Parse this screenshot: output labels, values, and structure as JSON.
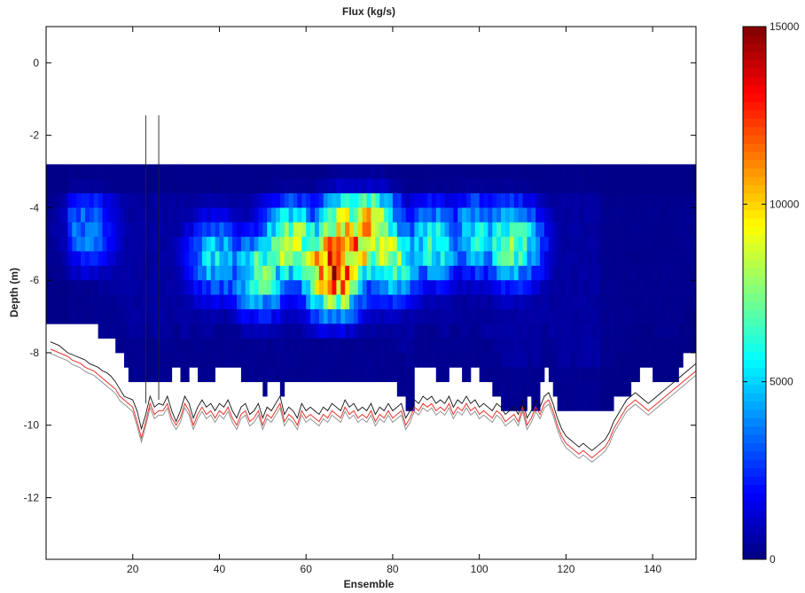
{
  "chart_data": {
    "type": "heatmap",
    "title": "Flux (kg/s)",
    "xlabel": "Ensemble",
    "ylabel": "Depth (m)",
    "xlim": [
      0,
      150
    ],
    "ylim": [
      -13.7,
      1
    ],
    "xticks": [
      20,
      40,
      60,
      80,
      100,
      120,
      140
    ],
    "yticks": [
      0,
      -2,
      -4,
      -6,
      -8,
      -10,
      -12
    ],
    "colorbar": {
      "label": "",
      "limits": [
        0,
        15000
      ],
      "ticks": [
        0,
        5000,
        10000,
        15000
      ],
      "colormap": "jet"
    },
    "cell_depth_m": 0.4,
    "top_of_data_m": -2.8,
    "ensembles": [
      1,
      2,
      3,
      4,
      5,
      6,
      7,
      8,
      9,
      10,
      11,
      12,
      13,
      14,
      15,
      16,
      17,
      18,
      19,
      20,
      21,
      22,
      23,
      24,
      25,
      26,
      27,
      28,
      29,
      30,
      31,
      32,
      33,
      34,
      35,
      36,
      37,
      38,
      39,
      40,
      41,
      42,
      43,
      44,
      45,
      46,
      47,
      48,
      49,
      50,
      51,
      52,
      53,
      54,
      55,
      56,
      57,
      58,
      59,
      60,
      61,
      62,
      63,
      64,
      65,
      66,
      67,
      68,
      69,
      70,
      71,
      72,
      73,
      74,
      75,
      76,
      77,
      78,
      79,
      80,
      81,
      82,
      83,
      84,
      85,
      86,
      87,
      88,
      89,
      90,
      91,
      92,
      93,
      94,
      95,
      96,
      97,
      98,
      99,
      100,
      101,
      102,
      103,
      104,
      105,
      106,
      107,
      108,
      109,
      110,
      111,
      112,
      113,
      114,
      115,
      116,
      117,
      118,
      119,
      120,
      121,
      122,
      123,
      124,
      125,
      126,
      127,
      128,
      129,
      130,
      131,
      132,
      133,
      134,
      135,
      136,
      137,
      138,
      139,
      140,
      141,
      142,
      143,
      144,
      145,
      146,
      147,
      148,
      149,
      150
    ],
    "data_bottom_m": [
      -7.2,
      -7.2,
      -7.2,
      -7.2,
      -7.2,
      -7.2,
      -7.2,
      -7.2,
      -7.2,
      -7.2,
      -7.2,
      -7.2,
      -7.6,
      -7.6,
      -7.6,
      -7.6,
      -8.0,
      -8.0,
      -8.4,
      -8.8,
      -8.8,
      -8.8,
      -8.8,
      -8.8,
      -8.8,
      -8.8,
      -8.8,
      -8.8,
      -8.8,
      -8.4,
      -8.4,
      -8.8,
      -8.8,
      -8.4,
      -8.4,
      -8.8,
      -8.8,
      -8.8,
      -8.8,
      -8.4,
      -8.4,
      -8.4,
      -8.4,
      -8.4,
      -8.4,
      -8.8,
      -8.8,
      -8.8,
      -8.8,
      -8.8,
      -9.2,
      -8.8,
      -8.8,
      -8.8,
      -9.2,
      -8.8,
      -8.8,
      -8.8,
      -8.8,
      -8.8,
      -8.8,
      -8.8,
      -8.8,
      -8.8,
      -8.8,
      -8.8,
      -8.8,
      -8.8,
      -8.8,
      -8.8,
      -8.8,
      -8.8,
      -8.8,
      -8.8,
      -8.8,
      -8.8,
      -8.8,
      -8.8,
      -8.8,
      -8.8,
      -8.8,
      -9.2,
      -9.2,
      -9.6,
      -9.6,
      -8.4,
      -8.4,
      -8.4,
      -8.4,
      -8.4,
      -8.8,
      -8.8,
      -8.8,
      -8.4,
      -8.4,
      -8.4,
      -8.8,
      -8.8,
      -8.4,
      -8.4,
      -8.8,
      -8.8,
      -8.8,
      -9.2,
      -9.2,
      -9.6,
      -9.6,
      -9.6,
      -9.6,
      -9.6,
      -9.6,
      -9.2,
      -9.6,
      -9.6,
      -8.8,
      -8.4,
      -8.8,
      -9.2,
      -9.6,
      -9.6,
      -9.6,
      -9.6,
      -9.6,
      -9.6,
      -9.6,
      -9.6,
      -9.6,
      -9.6,
      -9.6,
      -9.6,
      -9.6,
      -9.2,
      -9.2,
      -9.2,
      -9.2,
      -8.8,
      -8.8,
      -8.4,
      -8.4,
      -8.4,
      -8.8,
      -8.8,
      -8.8,
      -8.8,
      -8.8,
      -8.8,
      -8.4,
      -7.8,
      -7.8,
      -7.8,
      -7.8,
      -7.8
    ],
    "flux_hotspots": [
      {
        "ensemble": 67,
        "depth": -5.8,
        "flux": 13500
      },
      {
        "ensemble": 66,
        "depth": -5.4,
        "flux": 12500
      },
      {
        "ensemble": 72,
        "depth": -5.0,
        "flux": 11500
      },
      {
        "ensemble": 75,
        "depth": -4.6,
        "flux": 11000
      },
      {
        "ensemble": 64,
        "depth": -5.4,
        "flux": 10500
      },
      {
        "ensemble": 70,
        "depth": -4.6,
        "flux": 10000
      },
      {
        "ensemble": 57,
        "depth": -5.0,
        "flux": 9500
      },
      {
        "ensemble": 80,
        "depth": -5.4,
        "flux": 9000
      },
      {
        "ensemble": 108,
        "depth": -5.0,
        "flux": 8000
      },
      {
        "ensemble": 50,
        "depth": -5.8,
        "flux": 7500
      },
      {
        "ensemble": 90,
        "depth": -5.0,
        "flux": 6500
      },
      {
        "ensemble": 100,
        "depth": -4.8,
        "flux": 6000
      },
      {
        "ensemble": 40,
        "depth": -5.4,
        "flux": 5500
      },
      {
        "ensemble": 10,
        "depth": -4.6,
        "flux": 4000
      }
    ],
    "bottom_track_black": [
      -7.7,
      -7.75,
      -7.8,
      -7.9,
      -8.0,
      -8.05,
      -8.1,
      -8.15,
      -8.2,
      -8.3,
      -8.35,
      -8.4,
      -8.5,
      -8.55,
      -8.65,
      -8.8,
      -9.0,
      -9.2,
      -9.25,
      -9.3,
      -9.6,
      -10.1,
      -9.7,
      -9.2,
      -9.5,
      -9.4,
      -9.45,
      -9.2,
      -9.6,
      -9.9,
      -9.6,
      -9.2,
      -9.4,
      -9.8,
      -9.5,
      -9.3,
      -9.5,
      -9.4,
      -9.6,
      -9.4,
      -9.5,
      -9.3,
      -9.6,
      -9.8,
      -9.5,
      -9.4,
      -9.7,
      -9.6,
      -9.4,
      -9.8,
      -9.5,
      -9.6,
      -9.4,
      -9.2,
      -9.7,
      -9.5,
      -9.6,
      -9.8,
      -9.4,
      -9.6,
      -9.5,
      -9.6,
      -9.7,
      -9.5,
      -9.6,
      -9.4,
      -9.5,
      -9.6,
      -9.3,
      -9.5,
      -9.4,
      -9.6,
      -9.5,
      -9.6,
      -9.4,
      -9.7,
      -9.5,
      -9.6,
      -9.4,
      -9.6,
      -9.5,
      -9.4,
      -9.8,
      -9.6,
      -9.3,
      -9.4,
      -9.2,
      -9.3,
      -9.2,
      -9.4,
      -9.3,
      -9.4,
      -9.2,
      -9.5,
      -9.3,
      -9.4,
      -9.2,
      -9.4,
      -9.3,
      -9.5,
      -9.4,
      -9.5,
      -9.6,
      -9.4,
      -9.5,
      -9.7,
      -9.6,
      -9.5,
      -9.7,
      -9.3,
      -9.8,
      -9.6,
      -9.3,
      -9.5,
      -9.2,
      -9.1,
      -9.4,
      -9.8,
      -10.1,
      -10.3,
      -10.4,
      -10.5,
      -10.6,
      -10.5,
      -10.6,
      -10.7,
      -10.6,
      -10.5,
      -10.4,
      -10.2,
      -9.9,
      -9.7,
      -9.5,
      -9.3,
      -9.2,
      -9.1,
      -9.2,
      -9.3,
      -9.4,
      -9.3,
      -9.2,
      -9.1,
      -9.0,
      -8.9,
      -8.8,
      -8.7,
      -8.6,
      -8.5,
      -8.4,
      -8.3
    ],
    "bottom_track_red": [
      -7.9,
      -7.95,
      -8.0,
      -8.05,
      -8.1,
      -8.2,
      -8.25,
      -8.3,
      -8.4,
      -8.45,
      -8.5,
      -8.6,
      -8.7,
      -8.8,
      -8.9,
      -9.0,
      -9.2,
      -9.3,
      -9.4,
      -9.5,
      -9.9,
      -10.35,
      -9.9,
      -9.4,
      -9.7,
      -9.6,
      -9.6,
      -9.4,
      -9.8,
      -10.0,
      -9.8,
      -9.4,
      -9.6,
      -10.0,
      -9.7,
      -9.5,
      -9.7,
      -9.6,
      -9.8,
      -9.6,
      -9.7,
      -9.5,
      -9.8,
      -10.0,
      -9.7,
      -9.6,
      -9.9,
      -9.8,
      -9.6,
      -10.0,
      -9.7,
      -9.8,
      -9.6,
      -9.4,
      -9.9,
      -9.7,
      -9.8,
      -10.0,
      -9.6,
      -9.8,
      -9.7,
      -9.8,
      -9.9,
      -9.7,
      -9.8,
      -9.6,
      -9.7,
      -9.8,
      -9.5,
      -9.7,
      -9.6,
      -9.8,
      -9.7,
      -9.8,
      -9.6,
      -9.9,
      -9.7,
      -9.8,
      -9.6,
      -9.8,
      -9.7,
      -9.6,
      -10.0,
      -9.8,
      -9.5,
      -9.6,
      -9.4,
      -9.5,
      -9.4,
      -9.6,
      -9.5,
      -9.6,
      -9.4,
      -9.7,
      -9.5,
      -9.6,
      -9.4,
      -9.6,
      -9.5,
      -9.7,
      -9.6,
      -9.7,
      -9.8,
      -9.6,
      -9.7,
      -9.9,
      -9.8,
      -9.7,
      -9.9,
      -9.5,
      -10.0,
      -9.8,
      -9.5,
      -9.7,
      -9.4,
      -9.3,
      -9.6,
      -10.0,
      -10.3,
      -10.5,
      -10.6,
      -10.7,
      -10.8,
      -10.7,
      -10.8,
      -10.9,
      -10.8,
      -10.7,
      -10.6,
      -10.4,
      -10.1,
      -9.9,
      -9.7,
      -9.5,
      -9.4,
      -9.3,
      -9.4,
      -9.5,
      -9.6,
      -9.5,
      -9.4,
      -9.3,
      -9.2,
      -9.1,
      -9.0,
      -8.9,
      -8.8,
      -8.7,
      -8.6,
      -8.5
    ]
  },
  "colors": {
    "background": "#ffffff",
    "axes": "#000000",
    "bottom_track_black": "#111111",
    "bottom_track_red": "#e8322a",
    "bottom_track_grey": "#8a8a8a"
  }
}
